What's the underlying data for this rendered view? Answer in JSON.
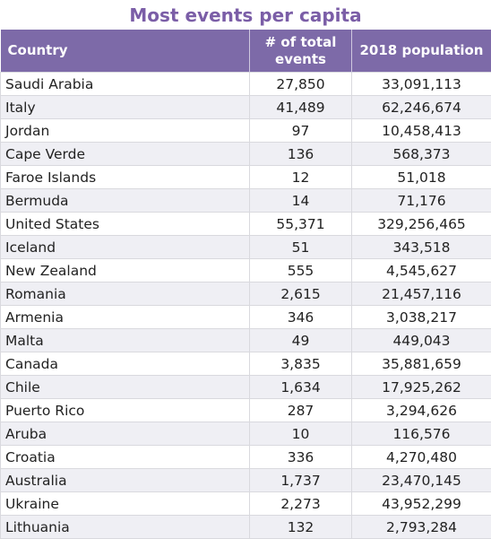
{
  "title": "Most events per capita",
  "table": {
    "header": [
      "Country",
      "# of total events",
      "2018 population"
    ],
    "rows": [
      [
        "Saudi Arabia",
        "27,850",
        "33,091,113"
      ],
      [
        "Italy",
        "41,489",
        "62,246,674"
      ],
      [
        "Jordan",
        "97",
        "10,458,413"
      ],
      [
        "Cape Verde",
        "136",
        "568,373"
      ],
      [
        "Faroe Islands",
        "12",
        "51,018"
      ],
      [
        "Bermuda",
        "14",
        "71,176"
      ],
      [
        "United States",
        "55,371",
        "329,256,465"
      ],
      [
        "Iceland",
        "51",
        "343,518"
      ],
      [
        "New Zealand",
        "555",
        "4,545,627"
      ],
      [
        "Romania",
        "2,615",
        "21,457,116"
      ],
      [
        "Armenia",
        "346",
        "3,038,217"
      ],
      [
        "Malta",
        "49",
        "449,043"
      ],
      [
        "Canada",
        "3,835",
        "35,881,659"
      ],
      [
        "Chile",
        "1,634",
        "17,925,262"
      ],
      [
        "Puerto Rico",
        "287",
        "3,294,626"
      ],
      [
        "Aruba",
        "10",
        "116,576"
      ],
      [
        "Croatia",
        "336",
        "4,270,480"
      ],
      [
        "Australia",
        "1,737",
        "23,470,145"
      ],
      [
        "Ukraine",
        "2,273",
        "43,952,299"
      ],
      [
        "Lithuania",
        "132",
        "2,793,284"
      ]
    ]
  }
}
